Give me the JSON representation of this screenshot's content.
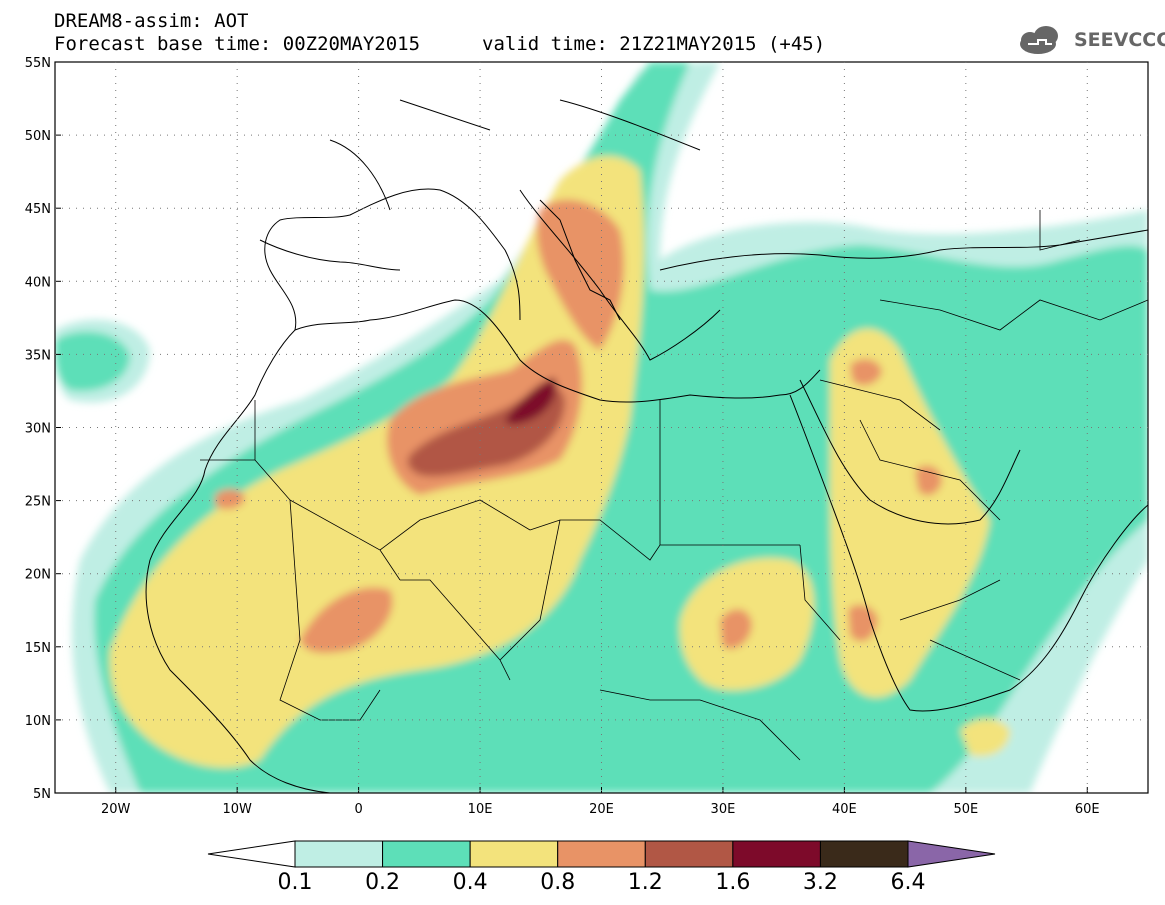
{
  "header": {
    "line1": "DREAM8-assim: AOT",
    "line2": "Forecast base time: 00Z20MAY2015",
    "line3": "valid time: 21Z21MAY2015 (+45)",
    "logo_text": "SEEVCCC"
  },
  "map": {
    "lat_labels": [
      "55N",
      "50N",
      "45N",
      "40N",
      "35N",
      "30N",
      "25N",
      "20N",
      "15N",
      "10N",
      "5N"
    ],
    "lon_labels": [
      "20W",
      "10W",
      "0",
      "10E",
      "20E",
      "30E",
      "40E",
      "50E",
      "60E"
    ],
    "extent": {
      "lon": [
        -25,
        65
      ],
      "lat": [
        5,
        55
      ]
    }
  },
  "colorbar": {
    "levels": [
      "0.1",
      "0.2",
      "0.4",
      "0.8",
      "1.2",
      "1.6",
      "3.2",
      "6.4"
    ],
    "colors": [
      "#ffffff",
      "#bfeee4",
      "#5ddfb8",
      "#f3e37c",
      "#e89366",
      "#b15745",
      "#7d0a2a",
      "#3a2a1a",
      "#8a66a8"
    ]
  }
}
